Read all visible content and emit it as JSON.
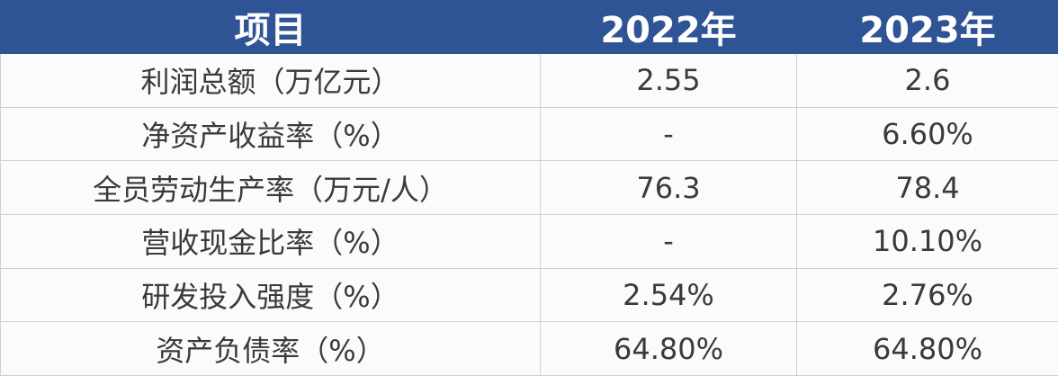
{
  "table": {
    "header": [
      "项目",
      "2022年",
      "2023年"
    ],
    "rows": [
      [
        "利润总额（万亿元）",
        "2.55",
        "2.6"
      ],
      [
        "净资产收益率（%）",
        "-",
        "6.60%"
      ],
      [
        "全员劳动生产率（万元/人）",
        "76.3",
        "78.4"
      ],
      [
        "营收现金比率（%）",
        "-",
        "10.10%"
      ],
      [
        "研发投入强度（%）",
        "2.54%",
        "2.76%"
      ],
      [
        "资产负债率（%）",
        "64.80%",
        "64.80%"
      ]
    ]
  }
}
